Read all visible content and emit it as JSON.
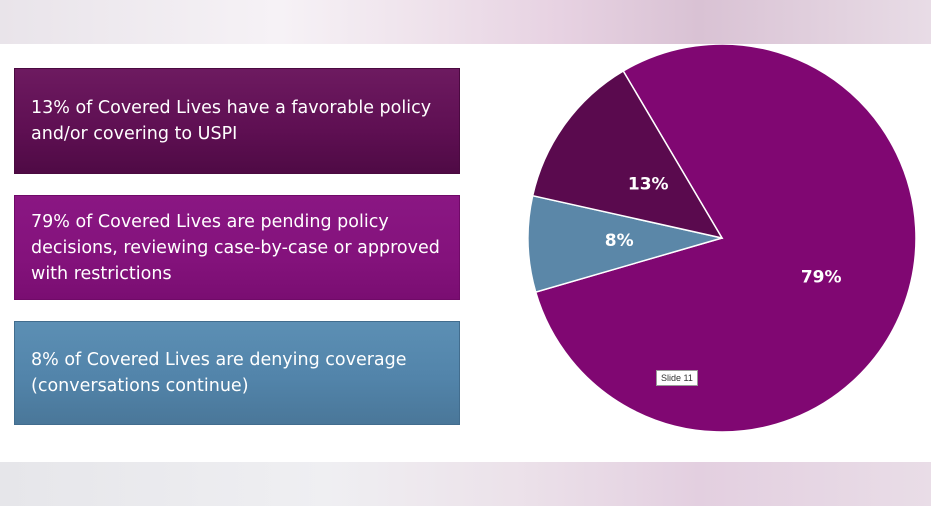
{
  "legend_boxes": [
    {
      "text": "13% of Covered Lives have a favorable policy and/or covering to USPI",
      "color": "#5e0f52"
    },
    {
      "text": "79% of Covered Lives are pending policy decisions, reviewing case-by-case or approved with restrictions",
      "color": "#84127c"
    },
    {
      "text": "8% of Covered Lives are denying coverage (conversations continue)",
      "color": "#5284aa"
    }
  ],
  "slide_label": "Slide 11",
  "chart_data": {
    "type": "pie",
    "slices": [
      {
        "label": "79%",
        "value": 79,
        "color": "#800772"
      },
      {
        "label": "8%",
        "value": 8,
        "color": "#5b87a8"
      },
      {
        "label": "13%",
        "value": 13,
        "color": "#5a0a4e"
      }
    ]
  }
}
